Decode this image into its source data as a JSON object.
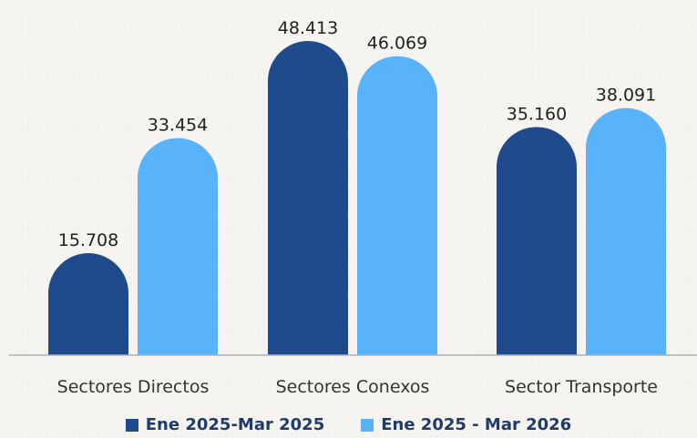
{
  "chart_data": {
    "type": "bar",
    "categories": [
      "Sectores Directos",
      "Sectores Conexos",
      "Sector Transporte"
    ],
    "series": [
      {
        "name": "Ene 2025-Mar 2025",
        "values": [
          15708,
          48413,
          35160
        ],
        "labels": [
          "15.708",
          "48.413",
          "35.160"
        ],
        "color": "#1f4a8c"
      },
      {
        "name": "Ene 2025 - Mar 2026",
        "values": [
          33454,
          46069,
          38091
        ],
        "labels": [
          "33.454",
          "46.069",
          "38.091"
        ],
        "color": "#58b3fb"
      }
    ],
    "ylim": [
      0,
      48413
    ],
    "grid": false,
    "legend_position": "bottom",
    "bar_shape": "rounded-top",
    "baseline_color": "#b0b0b0"
  },
  "legend": {
    "items": [
      {
        "label": "Ene 2025-Mar 2025",
        "color": "#1f4a8c"
      },
      {
        "label": "Ene 2025 - Mar 2026",
        "color": "#58b3fb"
      }
    ]
  }
}
